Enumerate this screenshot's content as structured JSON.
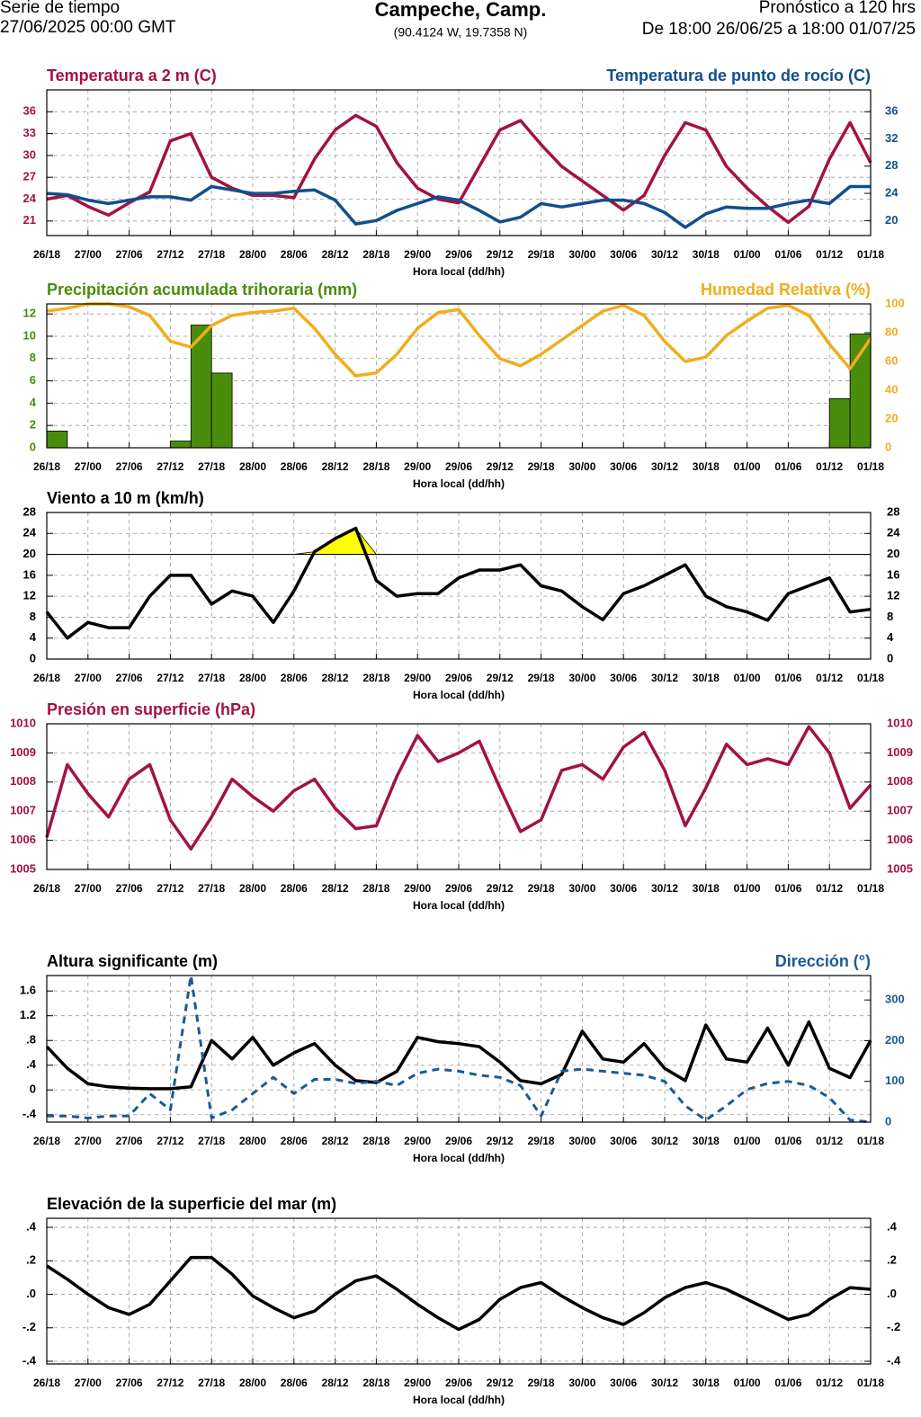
{
  "header": {
    "left_1": "Serie de tiempo",
    "left_2": "27/06/2025 00:00 GMT",
    "title": "Campeche, Camp.",
    "subtitle": "(90.4124 W, 19.7358 N)",
    "right_1": "Pronóstico a 120 hrs",
    "right_2": "De 18:00 26/06/25 a 18:00 01/07/25"
  },
  "chart_data": [
    {
      "type": "line",
      "xlabel": "Hora local (dd/hh)",
      "grid": true,
      "categories": [
        "26/18",
        null,
        "27/00",
        null,
        "27/06",
        null,
        "27/12",
        null,
        "27/18",
        null,
        "28/00",
        null,
        "28/06",
        null,
        "28/12",
        null,
        "28/18",
        null,
        "29/00",
        null,
        "29/06",
        null,
        "29/12",
        null,
        "29/18",
        null,
        "30/00",
        null,
        "30/06",
        null,
        "30/12",
        null,
        "30/18",
        null,
        "01/00",
        null,
        "01/06",
        null,
        "01/12",
        null,
        "01/18"
      ],
      "ylim": [
        19,
        39
      ],
      "yticks": [
        21,
        24,
        27,
        30,
        33,
        36
      ],
      "y2lim": [
        17.8,
        39.2
      ],
      "y2ticks": [
        20,
        24,
        28,
        32,
        36
      ],
      "series": [
        {
          "name": "Temperatura a 2 m (C)",
          "color": "#a3133f",
          "values": [
            24,
            24.5,
            23,
            21.8,
            23.5,
            25,
            32,
            33,
            27,
            25.5,
            24.5,
            24.5,
            24.2,
            29.5,
            33.5,
            35.5,
            34,
            29,
            25.5,
            24,
            23.5,
            28.5,
            33.5,
            34.8,
            31.5,
            28.5,
            26.5,
            24.5,
            22.5,
            24.5,
            30,
            34.5,
            33.5,
            28.5,
            25.5,
            23,
            20.8,
            23,
            29.5,
            34.5,
            29
          ]
        },
        {
          "name": "Temperatura de punto de rocío (C)",
          "color": "#114f8c",
          "axis": "y2",
          "values": [
            24,
            23.8,
            23,
            22.5,
            23,
            23.5,
            23.5,
            23,
            25,
            24.5,
            24,
            24,
            24.3,
            24.5,
            23,
            19.5,
            20,
            21.5,
            22.5,
            23.5,
            23,
            21.5,
            19.8,
            20.5,
            22.5,
            22,
            22.5,
            23,
            23,
            22.5,
            21.2,
            19,
            21,
            22,
            21.8,
            21.8,
            22.5,
            23,
            22.5,
            25,
            25
          ]
        }
      ]
    },
    {
      "type": "line",
      "xlabel": "Hora local (dd/hh)",
      "grid": true,
      "categories": [
        "26/18",
        null,
        "27/00",
        null,
        "27/06",
        null,
        "27/12",
        null,
        "27/18",
        null,
        "28/00",
        null,
        "28/06",
        null,
        "28/12",
        null,
        "28/18",
        null,
        "29/00",
        null,
        "29/06",
        null,
        "29/12",
        null,
        "29/18",
        null,
        "30/00",
        null,
        "30/06",
        null,
        "30/12",
        null,
        "30/18",
        null,
        "01/00",
        null,
        "01/06",
        null,
        "01/12",
        null,
        "01/18"
      ],
      "ylim": [
        0,
        12.9
      ],
      "yticks": [
        0,
        2,
        4,
        6,
        8,
        10,
        12
      ],
      "y2lim": [
        0,
        100
      ],
      "y2ticks": [
        0,
        20,
        40,
        60,
        80,
        100
      ],
      "series": [
        {
          "name": "Precipitación acumulada trihoraria (mm)",
          "type": "bar",
          "color": "#4a8c0c",
          "values": [
            1.5,
            0,
            0,
            0,
            0,
            0,
            0.6,
            11,
            6.7,
            0,
            0,
            0,
            0,
            0,
            0,
            0,
            0,
            0,
            0,
            0,
            0,
            0,
            0,
            0,
            0,
            0,
            0,
            0,
            0,
            0,
            0,
            0,
            0,
            0,
            0,
            0,
            0,
            0,
            4.4,
            10.2,
            0
          ]
        },
        {
          "name": "Humedad Relativa (%)",
          "color": "#f0ad1c",
          "axis": "y2",
          "values": [
            95,
            97,
            100,
            100,
            98,
            92,
            74,
            70,
            85,
            92,
            94,
            95,
            97,
            83,
            65,
            50,
            52,
            65,
            83,
            94,
            96,
            78,
            62,
            57,
            65,
            75,
            85,
            95,
            99,
            92,
            74,
            60,
            63,
            78,
            88,
            97,
            99,
            92,
            72,
            55,
            76
          ]
        }
      ]
    },
    {
      "type": "line",
      "xlabel": "Hora local (dd/hh)",
      "grid": true,
      "mirror_y": true,
      "threshold": 20,
      "threshold_color": "#ffff00",
      "categories": [
        "26/18",
        null,
        "27/00",
        null,
        "27/06",
        null,
        "27/12",
        null,
        "27/18",
        null,
        "28/00",
        null,
        "28/06",
        null,
        "28/12",
        null,
        "28/18",
        null,
        "29/00",
        null,
        "29/06",
        null,
        "29/12",
        null,
        "29/18",
        null,
        "30/00",
        null,
        "30/06",
        null,
        "30/12",
        null,
        "30/18",
        null,
        "01/00",
        null,
        "01/06",
        null,
        "01/12",
        null,
        "01/18"
      ],
      "ylim": [
        0,
        28
      ],
      "yticks": [
        0,
        4,
        8,
        12,
        16,
        20,
        24,
        28
      ],
      "series": [
        {
          "name": "Viento a 10 m (km/h)",
          "color": "#000000",
          "values": [
            9,
            4,
            7,
            6,
            6,
            12,
            16,
            16,
            10.5,
            13,
            12,
            7,
            13,
            20.5,
            23,
            25,
            15,
            12,
            12.5,
            12.5,
            15.5,
            17,
            17,
            18,
            14,
            13,
            10,
            7.5,
            12.5,
            14,
            16,
            18,
            12,
            10,
            9,
            7.4,
            12.5,
            14,
            15.5,
            9,
            9.5
          ]
        }
      ]
    },
    {
      "type": "line",
      "xlabel": "Hora local (dd/hh)",
      "grid": true,
      "mirror_y": true,
      "categories": [
        "26/18",
        null,
        "27/00",
        null,
        "27/06",
        null,
        "27/12",
        null,
        "27/18",
        null,
        "28/00",
        null,
        "28/06",
        null,
        "28/12",
        null,
        "28/18",
        null,
        "29/00",
        null,
        "29/06",
        null,
        "29/12",
        null,
        "29/18",
        null,
        "30/00",
        null,
        "30/06",
        null,
        "30/12",
        null,
        "30/18",
        null,
        "01/00",
        null,
        "01/06",
        null,
        "01/12",
        null,
        "01/18"
      ],
      "ylim": [
        1005,
        1010
      ],
      "yticks": [
        1005,
        1006,
        1007,
        1008,
        1009,
        1010
      ],
      "series": [
        {
          "name": "Presión en superficie (hPa)",
          "color": "#a3133f",
          "values": [
            1006.1,
            1008.6,
            1007.6,
            1006.8,
            1008.1,
            1008.6,
            1006.7,
            1005.7,
            1006.8,
            1008.1,
            1007.5,
            1007.0,
            1007.7,
            1008.1,
            1007.1,
            1006.4,
            1006.5,
            1008.2,
            1009.6,
            1008.7,
            1009.0,
            1009.4,
            1007.8,
            1006.3,
            1006.7,
            1008.4,
            1008.6,
            1008.1,
            1009.2,
            1009.7,
            1008.4,
            1006.5,
            1007.8,
            1009.3,
            1008.6,
            1008.8,
            1008.6,
            1009.9,
            1009.0,
            1007.1,
            1007.9
          ]
        }
      ]
    },
    {
      "type": "line",
      "xlabel": "Hora local (dd/hh)",
      "grid": true,
      "categories": [
        "26/18",
        null,
        "27/00",
        null,
        "27/06",
        null,
        "27/12",
        null,
        "27/18",
        null,
        "28/00",
        null,
        "28/06",
        null,
        "28/12",
        null,
        "28/18",
        null,
        "29/00",
        null,
        "29/06",
        null,
        "29/12",
        null,
        "29/18",
        null,
        "30/00",
        null,
        "30/06",
        null,
        "30/12",
        null,
        "30/18",
        null,
        "01/00",
        null,
        "01/06",
        null,
        "01/12",
        null,
        "01/18"
      ],
      "ylim": [
        -0.52,
        1.85
      ],
      "yticks": [
        {
          "value": -0.4,
          "label": "-.4"
        },
        0,
        {
          "value": 0.4,
          "label": ".4"
        },
        {
          "value": 0.8,
          "label": ".8"
        },
        1.2,
        1.6
      ],
      "y2lim": [
        0,
        360
      ],
      "y2ticks": [
        0,
        100,
        200,
        300
      ],
      "series": [
        {
          "name": "Altura significante (m)",
          "color": "#000000",
          "values": [
            0.7,
            0.35,
            0.1,
            0.05,
            0.03,
            0.02,
            0.02,
            0.05,
            0.8,
            0.5,
            0.85,
            0.4,
            0.6,
            0.75,
            0.4,
            0.15,
            0.12,
            0.3,
            0.85,
            0.78,
            0.75,
            0.7,
            0.45,
            0.15,
            0.1,
            0.25,
            0.95,
            0.5,
            0.45,
            0.75,
            0.35,
            0.15,
            1.05,
            0.5,
            0.45,
            1.0,
            0.4,
            1.1,
            0.35,
            0.2,
            0.8
          ]
        },
        {
          "name": "Dirección (°)",
          "color": "#1a5a96",
          "axis": "y2",
          "dashed": true,
          "values": [
            15,
            15,
            10,
            15,
            15,
            70,
            30,
            360,
            10,
            30,
            70,
            110,
            70,
            105,
            105,
            95,
            100,
            90,
            120,
            130,
            125,
            115,
            110,
            90,
            15,
            125,
            130,
            125,
            120,
            115,
            100,
            40,
            5,
            40,
            80,
            95,
            100,
            90,
            60,
            5,
            0
          ]
        }
      ]
    },
    {
      "type": "line",
      "xlabel": "Hora local (dd/hh)",
      "grid": true,
      "mirror_y": true,
      "categories": [
        "26/18",
        null,
        "27/00",
        null,
        "27/06",
        null,
        "27/12",
        null,
        "27/18",
        null,
        "28/00",
        null,
        "28/06",
        null,
        "28/12",
        null,
        "28/18",
        null,
        "29/00",
        null,
        "29/06",
        null,
        "29/12",
        null,
        "29/18",
        null,
        "30/00",
        null,
        "30/06",
        null,
        "30/12",
        null,
        "30/18",
        null,
        "01/00",
        null,
        "01/06",
        null,
        "01/12",
        null,
        "01/18"
      ],
      "ylim": [
        -0.416,
        0.454
      ],
      "yticks": [
        {
          "value": -0.4,
          "label": "-.4"
        },
        {
          "value": -0.2,
          "label": "-.2"
        },
        {
          "value": 0,
          "label": ".0"
        },
        {
          "value": 0.2,
          "label": ".2"
        },
        {
          "value": 0.4,
          "label": ".4"
        }
      ],
      "series": [
        {
          "name": "Elevación de la superficie del mar (m)",
          "color": "#000000",
          "values": [
            0.17,
            0.09,
            0.0,
            -0.08,
            -0.12,
            -0.06,
            0.08,
            0.22,
            0.22,
            0.12,
            -0.01,
            -0.08,
            -0.14,
            -0.1,
            0.0,
            0.08,
            0.11,
            0.03,
            -0.06,
            -0.14,
            -0.21,
            -0.15,
            -0.03,
            0.04,
            0.07,
            -0.01,
            -0.08,
            -0.14,
            -0.18,
            -0.11,
            -0.02,
            0.04,
            0.07,
            0.03,
            -0.03,
            -0.09,
            -0.15,
            -0.12,
            -0.03,
            0.04,
            0.03
          ]
        }
      ]
    }
  ]
}
